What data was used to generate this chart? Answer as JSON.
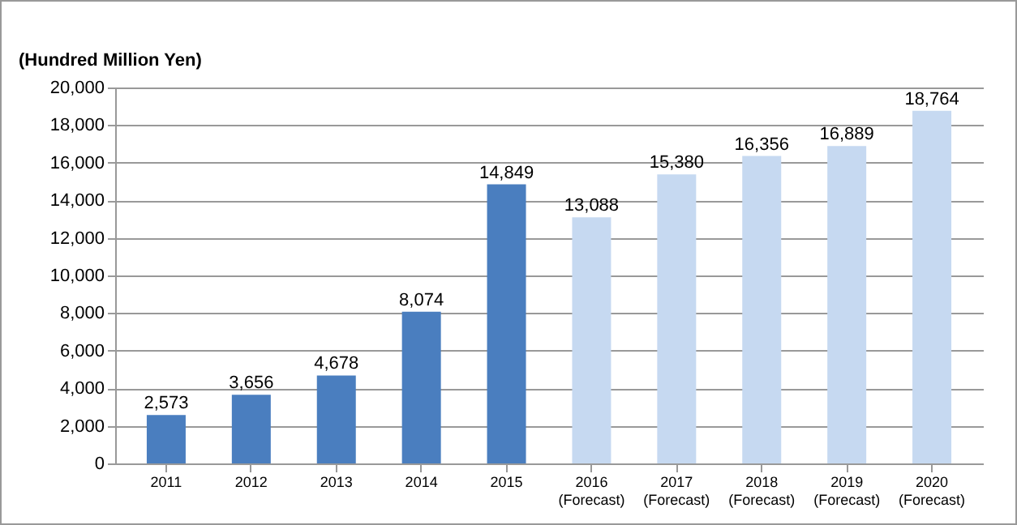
{
  "chart_data": {
    "type": "bar",
    "ylabel": "(Hundred Million Yen)",
    "categories": [
      "2011",
      "2012",
      "2013",
      "2014",
      "2015",
      "2016\n(Forecast)",
      "2017\n(Forecast)",
      "2018\n(Forecast)",
      "2019\n(Forecast)",
      "2020\n(Forecast)"
    ],
    "values": [
      2573,
      3656,
      4678,
      8074,
      14849,
      13088,
      15380,
      16356,
      16889,
      18764
    ],
    "colors": [
      "#4a7ebf",
      "#4a7ebf",
      "#4a7ebf",
      "#4a7ebf",
      "#4a7ebf",
      "#c6d9f1",
      "#c6d9f1",
      "#c6d9f1",
      "#c6d9f1",
      "#c6d9f1"
    ],
    "value_labels": [
      "2,573",
      "3,656",
      "4,678",
      "8,074",
      "14,849",
      "13,088",
      "15,380",
      "16,356",
      "16,889",
      "18,764"
    ],
    "ylim": [
      0,
      20000
    ],
    "yticks": [
      {
        "value": 0,
        "label": "0"
      },
      {
        "value": 2000,
        "label": "2,000"
      },
      {
        "value": 4000,
        "label": "4,000"
      },
      {
        "value": 6000,
        "label": "6,000"
      },
      {
        "value": 8000,
        "label": "8,000"
      },
      {
        "value": 10000,
        "label": "10,000"
      },
      {
        "value": 12000,
        "label": "12,000"
      },
      {
        "value": 14000,
        "label": "14,000"
      },
      {
        "value": 16000,
        "label": "16,000"
      },
      {
        "value": 18000,
        "label": "18,000"
      },
      {
        "value": 20000,
        "label": "20,000"
      }
    ],
    "grid": true
  }
}
